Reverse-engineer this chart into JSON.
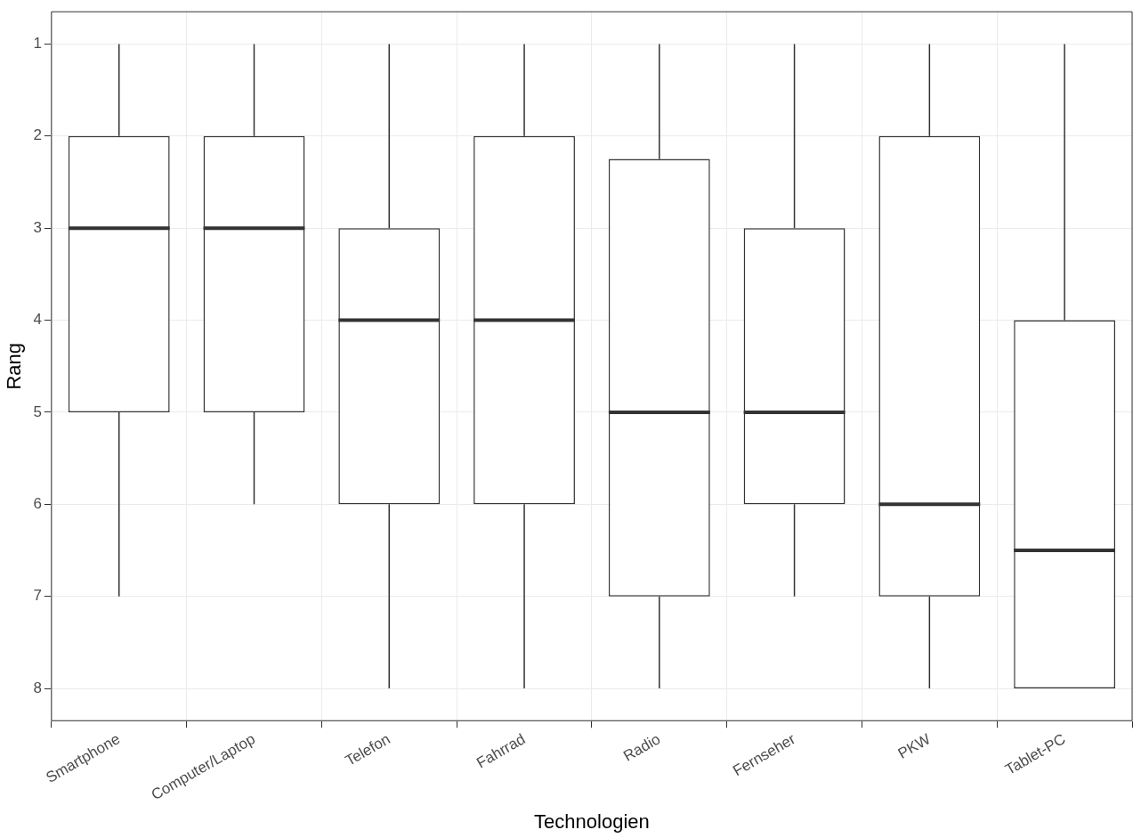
{
  "chart_data": {
    "type": "box",
    "xlabel": "Technologien",
    "ylabel": "Rang",
    "categories": [
      "Smartphone",
      "Computer/Laptop",
      "Telefon",
      "Fahrrad",
      "Radio",
      "Fernseher",
      "PKW",
      "Tablet-PC"
    ],
    "boxes": [
      {
        "low": 1,
        "q1": 2,
        "median": 3,
        "q3": 5,
        "high": 7
      },
      {
        "low": 1,
        "q1": 2,
        "median": 3,
        "q3": 5,
        "high": 6
      },
      {
        "low": 1,
        "q1": 3,
        "median": 4,
        "q3": 6,
        "high": 8
      },
      {
        "low": 1,
        "q1": 2,
        "median": 4,
        "q3": 6,
        "high": 8
      },
      {
        "low": 1,
        "q1": 2.25,
        "median": 5,
        "q3": 7,
        "high": 8
      },
      {
        "low": 1,
        "q1": 3,
        "median": 5,
        "q3": 6,
        "high": 7
      },
      {
        "low": 1,
        "q1": 2,
        "median": 6,
        "q3": 7,
        "high": 8
      },
      {
        "low": 1,
        "q1": 4,
        "median": 6.5,
        "q3": 8,
        "high": 8
      }
    ],
    "color": "#333333",
    "ylim": [
      8.35,
      0.65
    ],
    "yticks": [
      1,
      2,
      3,
      4,
      5,
      6,
      7,
      8
    ],
    "grid": true,
    "legend": false
  }
}
